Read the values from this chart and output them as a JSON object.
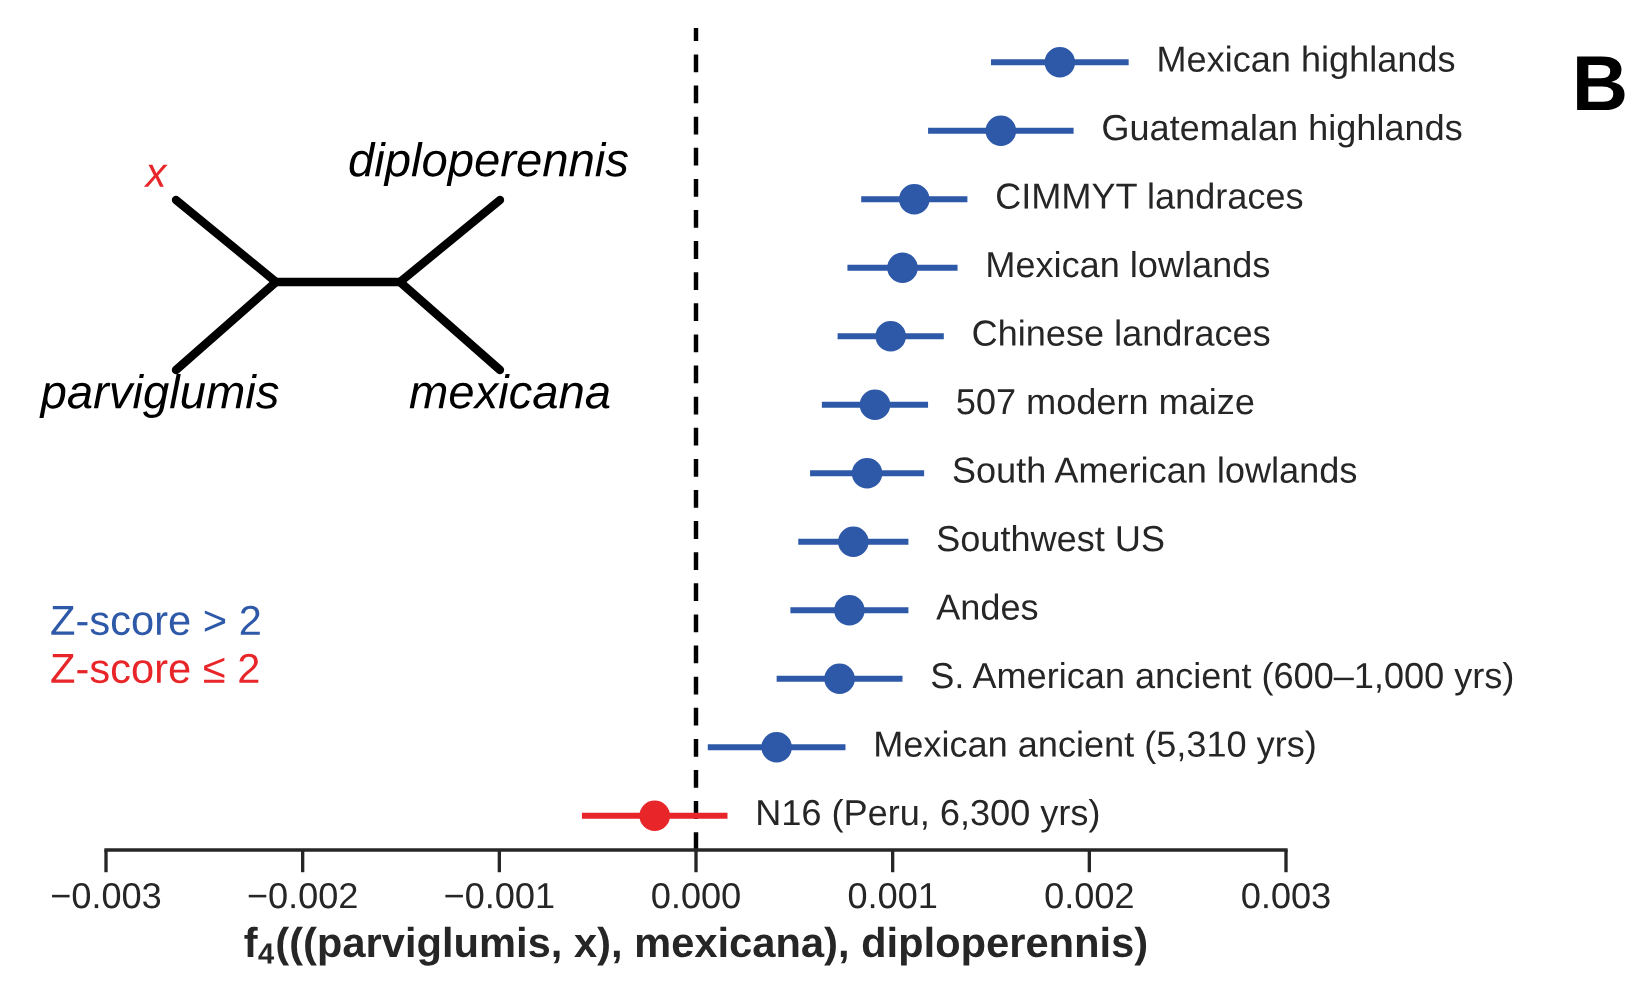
{
  "chart_data": {
    "type": "scatter",
    "orientation": "horizontal",
    "categories": [
      "Mexican highlands",
      "Guatemalan highlands",
      "CIMMYT landraces",
      "Mexican lowlands",
      "Chinese landraces",
      "507 modern maize",
      "South American lowlands",
      "Southwest US",
      "Andes",
      "S. American ancient (600–1,000 yrs)",
      "Mexican ancient (5,310 yrs)",
      "N16 (Peru, 6,300 yrs)"
    ],
    "series": [
      {
        "name": "Z-score > 2",
        "color": "#2e59a8",
        "values": [
          0.00185,
          0.00155,
          0.00111,
          0.00105,
          0.00099,
          0.00091,
          0.00087,
          0.0008,
          0.00078,
          0.00073,
          0.00041,
          null
        ],
        "errors": [
          0.00035,
          0.00037,
          0.00027,
          0.00028,
          0.00027,
          0.00027,
          0.00029,
          0.00028,
          0.0003,
          0.00032,
          0.00035,
          null
        ]
      },
      {
        "name": "Z-score ≤ 2",
        "color": "#e8262a",
        "values": [
          null,
          null,
          null,
          null,
          null,
          null,
          null,
          null,
          null,
          null,
          null,
          -0.00021
        ],
        "errors": [
          null,
          null,
          null,
          null,
          null,
          null,
          null,
          null,
          null,
          null,
          null,
          0.00037
        ]
      }
    ],
    "xlabel": "f$_{4}$(((parviglumis, x), mexicana), diploperennis)",
    "xlim": [
      -0.003,
      0.003
    ],
    "xticks": [
      {
        "value": -0.003,
        "label": "−0.003"
      },
      {
        "value": -0.002,
        "label": "−0.002"
      },
      {
        "value": -0.001,
        "label": "−0.001"
      },
      {
        "value": 0,
        "label": "0.000"
      },
      {
        "value": 0.001,
        "label": "0.001"
      },
      {
        "value": 0.002,
        "label": "0.002"
      },
      {
        "value": 0.003,
        "label": "0.003"
      }
    ],
    "ref_lines": [
      {
        "axis": "x",
        "value": 0,
        "line_style": "dashed",
        "color": "#000000"
      }
    ],
    "annotations": [
      "x",
      "diploperennis",
      "parviglumis",
      "mexicana",
      "B"
    ],
    "marker": "circle",
    "legend": "left",
    "tick_labels": "x",
    "grid": false
  }
}
